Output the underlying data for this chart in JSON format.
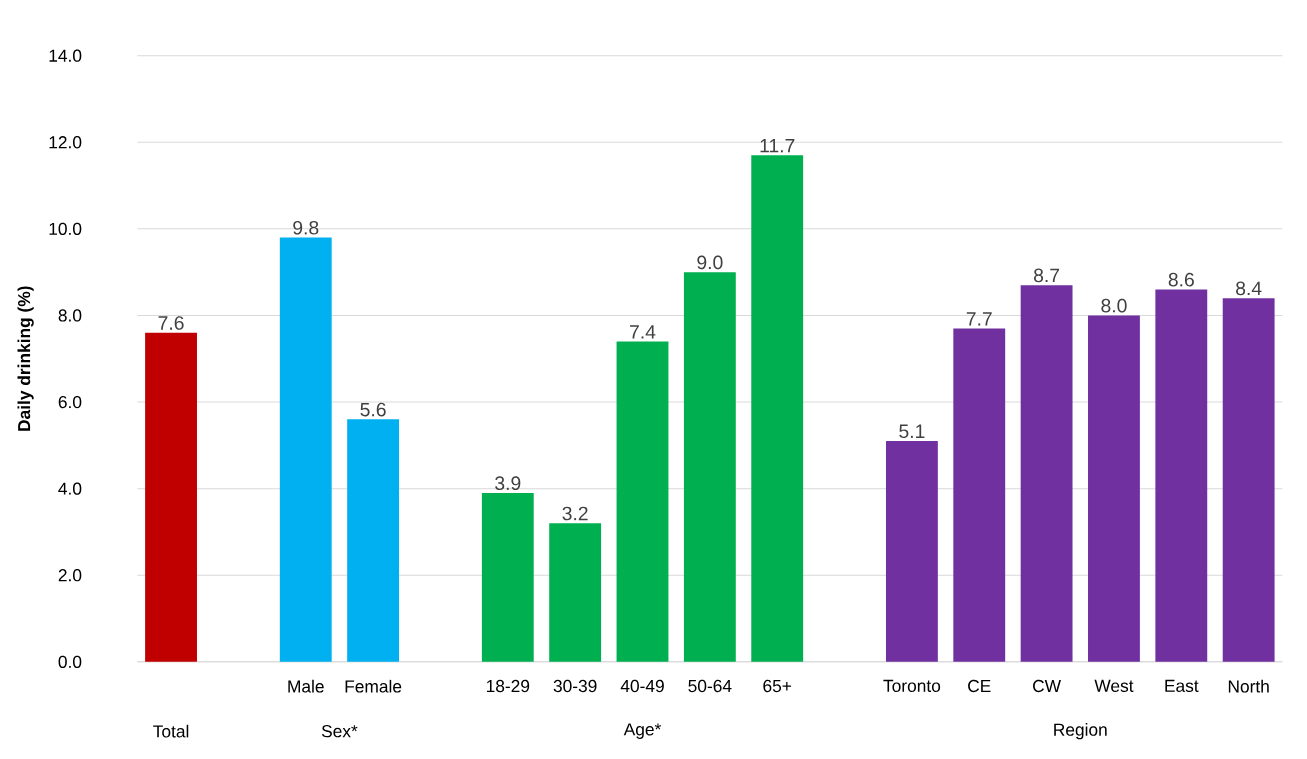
{
  "chart_data": {
    "type": "bar",
    "ylabel": "Daily drinking (%)",
    "categories": [
      null,
      null,
      "Male",
      "Female",
      null,
      "18-29",
      "30-39",
      "40-49",
      "50-64",
      "65+",
      null,
      "Toronto",
      "CE",
      "CW",
      "West",
      "East",
      "North"
    ],
    "values": [
      7.6,
      null,
      9.8,
      5.6,
      null,
      3.9,
      3.2,
      7.4,
      9.0,
      11.7,
      null,
      5.1,
      7.7,
      8.7,
      8.0,
      8.6,
      8.4
    ],
    "value_labels": [
      "7.6",
      null,
      "9.8",
      "5.6",
      null,
      "3.9",
      "3.2",
      "7.4",
      "9.0",
      "11.7",
      null,
      "5.1",
      "7.7",
      "8.7",
      "8.0",
      "8.6",
      "8.4"
    ],
    "colors": [
      "#c00000",
      null,
      "#00b0f0",
      "#00b0f0",
      null,
      "#00b050",
      "#00b050",
      "#00b050",
      "#00b050",
      "#00b050",
      null,
      "#7030a0",
      "#7030a0",
      "#7030a0",
      "#7030a0",
      "#7030a0",
      "#7030a0"
    ],
    "annotations": [
      "Total",
      "Sex*",
      "Age*",
      "Region"
    ],
    "ylim": [
      0,
      14
    ],
    "yticks": [
      {
        "value": 0,
        "label": "0.0"
      },
      {
        "value": 2,
        "label": "2.0"
      },
      {
        "value": 4,
        "label": "4.0"
      },
      {
        "value": 6,
        "label": "6.0"
      },
      {
        "value": 8,
        "label": "8.0"
      },
      {
        "value": 10,
        "label": "10.0"
      },
      {
        "value": 12,
        "label": "12.0"
      },
      {
        "value": 14,
        "label": "14.0"
      }
    ],
    "grid": "y"
  }
}
